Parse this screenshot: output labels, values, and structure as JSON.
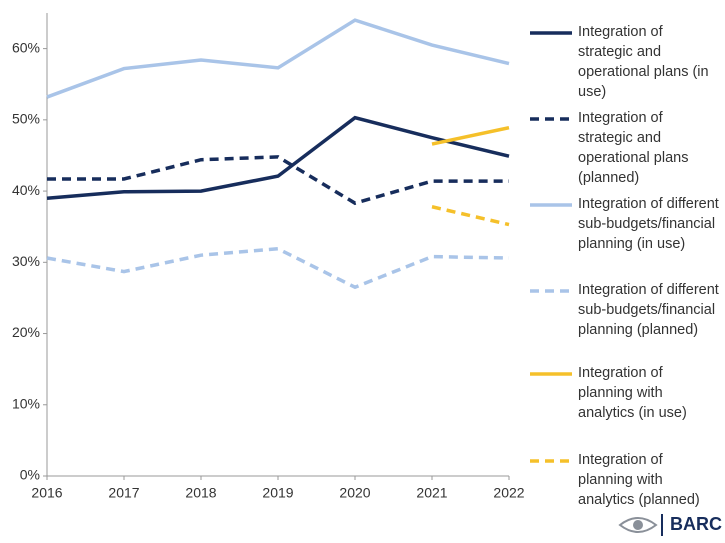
{
  "chart_data": {
    "type": "line",
    "categories": [
      "2016",
      "2017",
      "2018",
      "2019",
      "2020",
      "2021",
      "2022"
    ],
    "ylim": [
      0,
      65
    ],
    "yticks": [
      {
        "value": 0,
        "label": "0%"
      },
      {
        "value": 10,
        "label": "10%"
      },
      {
        "value": 20,
        "label": "20%"
      },
      {
        "value": 30,
        "label": "30%"
      },
      {
        "value": 40,
        "label": "40%"
      },
      {
        "value": 50,
        "label": "50%"
      },
      {
        "value": 60,
        "label": "60%"
      }
    ],
    "grid": false,
    "legend": "right",
    "series": [
      {
        "name": "Integration of strategic and operational plans (in use)",
        "color": "#172d5c",
        "dashed": false,
        "values": [
          39.0,
          39.9,
          40.0,
          42.1,
          50.3,
          47.5,
          44.9
        ]
      },
      {
        "name": "Integration of strategic and operational plans (planned)",
        "color": "#172d5c",
        "dashed": true,
        "values": [
          41.7,
          41.7,
          44.4,
          44.8,
          38.3,
          41.4,
          41.4
        ]
      },
      {
        "name": "Integration of different sub-budgets/financial planning (in use)",
        "color": "#a9c4e8",
        "dashed": false,
        "values": [
          53.2,
          57.2,
          58.4,
          57.3,
          64.0,
          60.5,
          57.9
        ]
      },
      {
        "name": "Integration of different sub-budgets/financial planning (planned)",
        "color": "#a9c4e8",
        "dashed": true,
        "values": [
          30.6,
          28.7,
          31.0,
          31.9,
          26.5,
          30.8,
          30.6
        ]
      },
      {
        "name": "Integration of planning with analytics (in use)",
        "color": "#f5c02a",
        "dashed": false,
        "values": [
          null,
          null,
          null,
          null,
          null,
          46.6,
          48.9
        ]
      },
      {
        "name": "Integration of planning with analytics (planned)",
        "color": "#f5c02a",
        "dashed": true,
        "values": [
          null,
          null,
          null,
          null,
          null,
          37.8,
          35.3
        ]
      }
    ]
  },
  "logo": "BARC"
}
